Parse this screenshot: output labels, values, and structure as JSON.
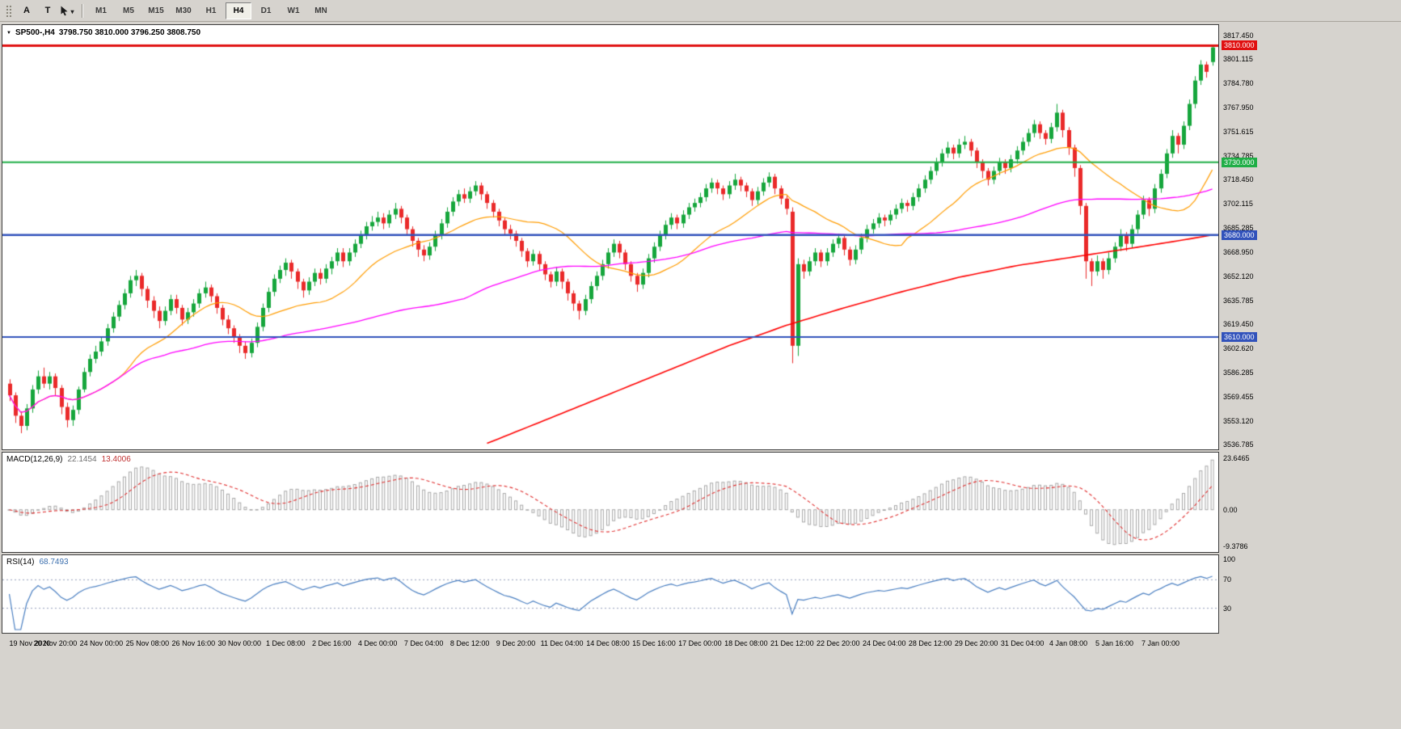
{
  "toolbar": {
    "caret": "▾",
    "annotation_buttons": [
      {
        "label": "A",
        "name": "text-label-tool-button"
      },
      {
        "label": "T",
        "name": "text-tool-button"
      }
    ],
    "timeframes": [
      {
        "label": "M1",
        "active": false
      },
      {
        "label": "M5",
        "active": false
      },
      {
        "label": "M15",
        "active": false
      },
      {
        "label": "M30",
        "active": false
      },
      {
        "label": "H1",
        "active": false
      },
      {
        "label": "H4",
        "active": true
      },
      {
        "label": "D1",
        "active": false
      },
      {
        "label": "W1",
        "active": false
      },
      {
        "label": "MN",
        "active": false
      }
    ]
  },
  "icons": {
    "collapse_arrow": "▼"
  },
  "chart": {
    "header": {
      "symbol_period": "SP500-,H4",
      "ohlc": "3798.750 3810.000 3796.250 3808.750"
    }
  },
  "macd": {
    "label": "MACD(12,26,9)",
    "main_value": "22.1454",
    "signal_value": "13.4006",
    "axis": [
      "23.6465",
      "0.00",
      "-9.3786"
    ]
  },
  "rsi": {
    "label": "RSI(14)",
    "value": "68.7493",
    "axis": [
      "100",
      "70",
      "30"
    ],
    "levels": [
      70,
      30
    ]
  },
  "chart_data": {
    "type": "candlestick",
    "symbol": "SP500-",
    "period": "H4",
    "price_axis_labels": [
      "3817.450",
      "3801.115",
      "3784.780",
      "3767.950",
      "3751.615",
      "3734.785",
      "3718.450",
      "3702.115",
      "3685.285",
      "3668.950",
      "3652.120",
      "3635.785",
      "3619.450",
      "3602.620",
      "3586.285",
      "3569.455",
      "3553.120",
      "3536.785"
    ],
    "time_axis_labels": [
      "19 Nov 2020",
      "20 Nov 20:00",
      "24 Nov 00:00",
      "25 Nov 08:00",
      "26 Nov 16:00",
      "30 Nov 00:00",
      "1 Dec 08:00",
      "2 Dec 16:00",
      "4 Dec 00:00",
      "7 Dec 04:00",
      "8 Dec 12:00",
      "9 Dec 20:00",
      "11 Dec 04:00",
      "14 Dec 08:00",
      "15 Dec 16:00",
      "17 Dec 00:00",
      "18 Dec 08:00",
      "21 Dec 12:00",
      "22 Dec 20:00",
      "24 Dec 04:00",
      "28 Dec 12:00",
      "29 Dec 20:00",
      "31 Dec 04:00",
      "4 Jan 08:00",
      "5 Jan 16:00",
      "7 Jan 00:00"
    ],
    "bars_per_time_label": 8,
    "horizontal_lines": [
      {
        "price": 3810.0,
        "color": "#e01010",
        "badge": "3810.000",
        "width": 3
      },
      {
        "price": 3730.0,
        "color": "#1fae46",
        "badge": "3730.000",
        "width": 2
      },
      {
        "price": 3680.0,
        "color": "#3152bb",
        "badge": "3680.000",
        "width": 2.5
      },
      {
        "price": 3610.0,
        "color": "#3152bb",
        "badge": "3610.000",
        "width": 2
      }
    ],
    "moving_averages": [
      {
        "name": "ma-fast",
        "color": "#ff9c00",
        "type": "sma",
        "period": 20,
        "width": 1.2
      },
      {
        "name": "ma-medium",
        "color": "#ff00ff",
        "type": "sma",
        "period": 80,
        "width": 1.3
      },
      {
        "name": "ma-slow",
        "color": "#ff0000",
        "type": "points",
        "width": 1.6,
        "points": [
          [
            83,
            3537
          ],
          [
            95,
            3556
          ],
          [
            105,
            3572
          ],
          [
            115,
            3588
          ],
          [
            125,
            3604
          ],
          [
            135,
            3618
          ],
          [
            145,
            3630
          ],
          [
            155,
            3641
          ],
          [
            165,
            3651
          ],
          [
            175,
            3659
          ],
          [
            185,
            3665
          ],
          [
            195,
            3671
          ],
          [
            203,
            3676
          ],
          [
            209,
            3680
          ]
        ]
      }
    ],
    "colors": {
      "bull": "#16a63c",
      "bear": "#ea2a2a",
      "background": "#ffffff",
      "macd_hist": "#a6a6a6",
      "macd_signal": "#e03030",
      "rsi_line": "#4a7fc1",
      "rsi_level": "#949ebb"
    },
    "candles": [
      [
        3578,
        3581,
        3566,
        3570
      ],
      [
        3570,
        3572,
        3551,
        3556
      ],
      [
        3556,
        3559,
        3544,
        3549
      ],
      [
        3549,
        3564,
        3546,
        3561
      ],
      [
        3561,
        3577,
        3558,
        3574
      ],
      [
        3574,
        3587,
        3571,
        3583
      ],
      [
        3583,
        3589,
        3575,
        3578
      ],
      [
        3578,
        3586,
        3574,
        3583
      ],
      [
        3583,
        3585,
        3570,
        3575
      ],
      [
        3575,
        3577,
        3557,
        3562
      ],
      [
        3562,
        3565,
        3548,
        3553
      ],
      [
        3553,
        3563,
        3549,
        3560
      ],
      [
        3560,
        3576,
        3557,
        3574
      ],
      [
        3574,
        3589,
        3572,
        3586
      ],
      [
        3586,
        3598,
        3583,
        3595
      ],
      [
        3595,
        3604,
        3592,
        3600
      ],
      [
        3600,
        3610,
        3597,
        3607
      ],
      [
        3607,
        3619,
        3604,
        3616
      ],
      [
        3616,
        3627,
        3613,
        3624
      ],
      [
        3624,
        3635,
        3621,
        3632
      ],
      [
        3632,
        3643,
        3629,
        3640
      ],
      [
        3640,
        3652,
        3637,
        3649
      ],
      [
        3649,
        3656,
        3645,
        3652
      ],
      [
        3652,
        3654,
        3638,
        3643
      ],
      [
        3643,
        3645,
        3630,
        3635
      ],
      [
        3635,
        3638,
        3623,
        3628
      ],
      [
        3628,
        3631,
        3616,
        3621
      ],
      [
        3621,
        3631,
        3618,
        3628
      ],
      [
        3628,
        3639,
        3625,
        3636
      ],
      [
        3636,
        3639,
        3626,
        3630
      ],
      [
        3630,
        3632,
        3618,
        3622
      ],
      [
        3622,
        3630,
        3619,
        3627
      ],
      [
        3627,
        3636,
        3624,
        3633
      ],
      [
        3633,
        3643,
        3630,
        3640
      ],
      [
        3640,
        3648,
        3637,
        3644
      ],
      [
        3644,
        3646,
        3634,
        3638
      ],
      [
        3638,
        3640,
        3626,
        3630
      ],
      [
        3630,
        3632,
        3618,
        3622
      ],
      [
        3622,
        3625,
        3612,
        3616
      ],
      [
        3616,
        3618,
        3606,
        3610
      ],
      [
        3610,
        3612,
        3599,
        3604
      ],
      [
        3604,
        3607,
        3595,
        3599
      ],
      [
        3599,
        3609,
        3596,
        3606
      ],
      [
        3606,
        3620,
        3603,
        3617
      ],
      [
        3617,
        3633,
        3614,
        3630
      ],
      [
        3630,
        3644,
        3627,
        3641
      ],
      [
        3641,
        3653,
        3638,
        3650
      ],
      [
        3650,
        3659,
        3647,
        3656
      ],
      [
        3656,
        3664,
        3652,
        3661
      ],
      [
        3661,
        3663,
        3650,
        3655
      ],
      [
        3655,
        3657,
        3643,
        3648
      ],
      [
        3648,
        3650,
        3637,
        3642
      ],
      [
        3642,
        3651,
        3639,
        3648
      ],
      [
        3648,
        3657,
        3645,
        3654
      ],
      [
        3654,
        3657,
        3646,
        3650
      ],
      [
        3650,
        3660,
        3647,
        3657
      ],
      [
        3657,
        3665,
        3653,
        3662
      ],
      [
        3662,
        3671,
        3659,
        3668
      ],
      [
        3668,
        3671,
        3658,
        3662
      ],
      [
        3662,
        3671,
        3659,
        3668
      ],
      [
        3668,
        3677,
        3665,
        3674
      ],
      [
        3674,
        3683,
        3671,
        3680
      ],
      [
        3680,
        3689,
        3677,
        3686
      ],
      [
        3686,
        3693,
        3683,
        3689
      ],
      [
        3689,
        3696,
        3686,
        3692
      ],
      [
        3692,
        3695,
        3684,
        3688
      ],
      [
        3688,
        3697,
        3685,
        3694
      ],
      [
        3694,
        3702,
        3691,
        3698
      ],
      [
        3698,
        3700,
        3688,
        3692
      ],
      [
        3692,
        3694,
        3680,
        3684
      ],
      [
        3684,
        3686,
        3672,
        3676
      ],
      [
        3676,
        3678,
        3665,
        3670
      ],
      [
        3670,
        3673,
        3662,
        3666
      ],
      [
        3666,
        3675,
        3663,
        3672
      ],
      [
        3672,
        3683,
        3669,
        3680
      ],
      [
        3680,
        3691,
        3677,
        3688
      ],
      [
        3688,
        3699,
        3685,
        3696
      ],
      [
        3696,
        3706,
        3693,
        3703
      ],
      [
        3703,
        3711,
        3700,
        3708
      ],
      [
        3708,
        3712,
        3702,
        3705
      ],
      [
        3705,
        3713,
        3702,
        3710
      ],
      [
        3710,
        3717,
        3707,
        3714
      ],
      [
        3714,
        3716,
        3704,
        3708
      ],
      [
        3708,
        3710,
        3698,
        3702
      ],
      [
        3702,
        3704,
        3692,
        3696
      ],
      [
        3696,
        3698,
        3686,
        3690
      ],
      [
        3690,
        3692,
        3680,
        3684
      ],
      [
        3684,
        3687,
        3677,
        3681
      ],
      [
        3681,
        3683,
        3672,
        3676
      ],
      [
        3676,
        3678,
        3665,
        3669
      ],
      [
        3669,
        3671,
        3658,
        3662
      ],
      [
        3662,
        3670,
        3659,
        3667
      ],
      [
        3667,
        3669,
        3656,
        3660
      ],
      [
        3660,
        3662,
        3649,
        3653
      ],
      [
        3653,
        3655,
        3644,
        3648
      ],
      [
        3648,
        3658,
        3645,
        3655
      ],
      [
        3655,
        3657,
        3643,
        3648
      ],
      [
        3648,
        3650,
        3635,
        3640
      ],
      [
        3640,
        3642,
        3628,
        3633
      ],
      [
        3633,
        3635,
        3622,
        3628
      ],
      [
        3628,
        3639,
        3625,
        3636
      ],
      [
        3636,
        3648,
        3633,
        3645
      ],
      [
        3645,
        3655,
        3642,
        3652
      ],
      [
        3652,
        3663,
        3649,
        3660
      ],
      [
        3660,
        3671,
        3657,
        3668
      ],
      [
        3668,
        3677,
        3665,
        3674
      ],
      [
        3674,
        3676,
        3664,
        3668
      ],
      [
        3668,
        3670,
        3656,
        3660
      ],
      [
        3660,
        3662,
        3648,
        3652
      ],
      [
        3652,
        3654,
        3641,
        3646
      ],
      [
        3646,
        3657,
        3643,
        3654
      ],
      [
        3654,
        3667,
        3651,
        3664
      ],
      [
        3664,
        3675,
        3661,
        3672
      ],
      [
        3672,
        3683,
        3669,
        3680
      ],
      [
        3680,
        3690,
        3677,
        3687
      ],
      [
        3687,
        3695,
        3684,
        3692
      ],
      [
        3692,
        3694,
        3684,
        3688
      ],
      [
        3688,
        3697,
        3685,
        3694
      ],
      [
        3694,
        3702,
        3691,
        3699
      ],
      [
        3699,
        3705,
        3696,
        3702
      ],
      [
        3702,
        3709,
        3699,
        3706
      ],
      [
        3706,
        3715,
        3703,
        3712
      ],
      [
        3712,
        3719,
        3709,
        3716
      ],
      [
        3716,
        3718,
        3708,
        3712
      ],
      [
        3712,
        3714,
        3704,
        3708
      ],
      [
        3708,
        3717,
        3705,
        3714
      ],
      [
        3714,
        3722,
        3711,
        3718
      ],
      [
        3718,
        3720,
        3710,
        3714
      ],
      [
        3714,
        3716,
        3706,
        3710
      ],
      [
        3710,
        3712,
        3700,
        3704
      ],
      [
        3704,
        3713,
        3701,
        3710
      ],
      [
        3710,
        3719,
        3707,
        3716
      ],
      [
        3716,
        3723,
        3713,
        3720
      ],
      [
        3720,
        3722,
        3708,
        3712
      ],
      [
        3712,
        3714,
        3701,
        3705
      ],
      [
        3705,
        3707,
        3694,
        3698
      ],
      [
        3696,
        3699,
        3592,
        3604
      ],
      [
        3604,
        3664,
        3597,
        3660
      ],
      [
        3660,
        3663,
        3650,
        3655
      ],
      [
        3655,
        3665,
        3652,
        3662
      ],
      [
        3662,
        3671,
        3659,
        3668
      ],
      [
        3668,
        3670,
        3658,
        3662
      ],
      [
        3662,
        3671,
        3659,
        3668
      ],
      [
        3668,
        3677,
        3665,
        3674
      ],
      [
        3674,
        3681,
        3671,
        3678
      ],
      [
        3678,
        3680,
        3666,
        3670
      ],
      [
        3670,
        3672,
        3659,
        3663
      ],
      [
        3663,
        3673,
        3660,
        3670
      ],
      [
        3670,
        3681,
        3667,
        3678
      ],
      [
        3678,
        3687,
        3675,
        3684
      ],
      [
        3684,
        3691,
        3681,
        3688
      ],
      [
        3688,
        3695,
        3685,
        3692
      ],
      [
        3692,
        3694,
        3686,
        3690
      ],
      [
        3690,
        3697,
        3687,
        3694
      ],
      [
        3694,
        3701,
        3691,
        3698
      ],
      [
        3698,
        3705,
        3695,
        3702
      ],
      [
        3702,
        3704,
        3696,
        3700
      ],
      [
        3700,
        3709,
        3697,
        3706
      ],
      [
        3706,
        3715,
        3703,
        3712
      ],
      [
        3712,
        3721,
        3709,
        3718
      ],
      [
        3718,
        3727,
        3715,
        3724
      ],
      [
        3724,
        3733,
        3721,
        3730
      ],
      [
        3730,
        3739,
        3727,
        3736
      ],
      [
        3736,
        3744,
        3733,
        3740
      ],
      [
        3740,
        3742,
        3732,
        3736
      ],
      [
        3736,
        3746,
        3733,
        3742
      ],
      [
        3742,
        3748,
        3739,
        3744
      ],
      [
        3744,
        3746,
        3734,
        3738
      ],
      [
        3738,
        3740,
        3726,
        3730
      ],
      [
        3730,
        3732,
        3719,
        3724
      ],
      [
        3724,
        3726,
        3714,
        3718
      ],
      [
        3718,
        3727,
        3715,
        3724
      ],
      [
        3724,
        3733,
        3721,
        3730
      ],
      [
        3730,
        3732,
        3722,
        3726
      ],
      [
        3726,
        3735,
        3723,
        3732
      ],
      [
        3732,
        3741,
        3729,
        3738
      ],
      [
        3738,
        3747,
        3735,
        3744
      ],
      [
        3744,
        3753,
        3741,
        3750
      ],
      [
        3750,
        3759,
        3747,
        3756
      ],
      [
        3756,
        3758,
        3746,
        3750
      ],
      [
        3750,
        3752,
        3742,
        3746
      ],
      [
        3746,
        3757,
        3743,
        3754
      ],
      [
        3754,
        3770,
        3751,
        3764
      ],
      [
        3764,
        3766,
        3747,
        3752
      ],
      [
        3752,
        3754,
        3735,
        3740
      ],
      [
        3740,
        3742,
        3720,
        3726
      ],
      [
        3726,
        3728,
        3694,
        3700
      ],
      [
        3700,
        3702,
        3650,
        3662
      ],
      [
        3662,
        3664,
        3645,
        3655
      ],
      [
        3655,
        3666,
        3652,
        3662
      ],
      [
        3662,
        3664,
        3650,
        3656
      ],
      [
        3656,
        3668,
        3653,
        3664
      ],
      [
        3664,
        3675,
        3661,
        3672
      ],
      [
        3672,
        3684,
        3669,
        3680
      ],
      [
        3680,
        3682,
        3669,
        3674
      ],
      [
        3674,
        3687,
        3671,
        3684
      ],
      [
        3684,
        3697,
        3681,
        3694
      ],
      [
        3694,
        3707,
        3691,
        3704
      ],
      [
        3704,
        3706,
        3693,
        3698
      ],
      [
        3698,
        3715,
        3695,
        3712
      ],
      [
        3712,
        3725,
        3709,
        3722
      ],
      [
        3722,
        3739,
        3719,
        3736
      ],
      [
        3736,
        3752,
        3733,
        3748
      ],
      [
        3748,
        3750,
        3736,
        3742
      ],
      [
        3742,
        3758,
        3739,
        3755
      ],
      [
        3755,
        3773,
        3752,
        3770
      ],
      [
        3770,
        3789,
        3767,
        3786
      ],
      [
        3786,
        3800,
        3783,
        3797
      ],
      [
        3797,
        3799,
        3788,
        3792
      ],
      [
        3798.75,
        3810,
        3796.25,
        3808.75
      ]
    ]
  }
}
